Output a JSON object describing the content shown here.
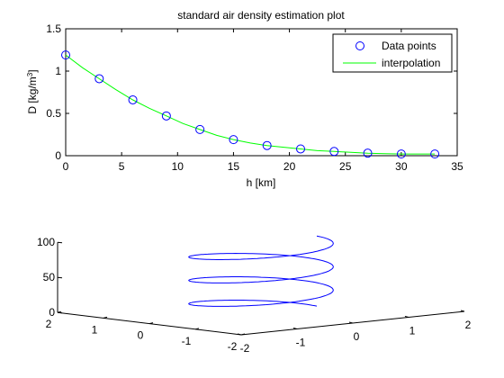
{
  "chart_data": [
    {
      "type": "line",
      "title": "standard air density estimation plot",
      "xlabel": "h [km]",
      "ylabel": "D [kg/m³]",
      "ylabel_parts": {
        "main": "D [kg/m",
        "sup": "3",
        "end": "]"
      },
      "xlim": [
        0,
        35
      ],
      "ylim": [
        0,
        1.5
      ],
      "xticks": [
        0,
        5,
        10,
        15,
        20,
        25,
        30,
        35
      ],
      "yticks": [
        0,
        0.5,
        1,
        1.5
      ],
      "xtick_labels": [
        "0",
        "5",
        "10",
        "15",
        "20",
        "25",
        "30",
        "35"
      ],
      "ytick_labels": [
        "0",
        "0.5",
        "1",
        "1.5"
      ],
      "grid": false,
      "legend_position": "top-right",
      "series": [
        {
          "name": "Data points",
          "style": "markers",
          "marker": "circle",
          "color": "#0000ff",
          "x": [
            0,
            3,
            6,
            9,
            12,
            15,
            18,
            21,
            24,
            27,
            30,
            33
          ],
          "y": [
            1.19,
            0.91,
            0.66,
            0.47,
            0.31,
            0.19,
            0.12,
            0.08,
            0.05,
            0.03,
            0.02,
            0.02
          ]
        },
        {
          "name": "interpolation",
          "style": "line",
          "color": "#00ff00",
          "x": [
            0,
            1.5,
            3,
            4.5,
            6,
            7.5,
            9,
            10.5,
            12,
            13.5,
            15,
            16.5,
            18,
            19.5,
            21,
            22.5,
            24,
            25.5,
            27,
            28.5,
            30,
            31.5,
            33
          ],
          "y": [
            1.19,
            1.04,
            0.91,
            0.78,
            0.66,
            0.56,
            0.47,
            0.38,
            0.31,
            0.24,
            0.19,
            0.15,
            0.12,
            0.1,
            0.08,
            0.06,
            0.05,
            0.04,
            0.03,
            0.025,
            0.02,
            0.02,
            0.02
          ]
        }
      ]
    },
    {
      "type": "line3d",
      "title": "",
      "xlim": [
        -2,
        2
      ],
      "ylim": [
        -2,
        2
      ],
      "zlim": [
        0,
        100
      ],
      "xtick_labels": [
        "-2",
        "-1",
        "0",
        "1",
        "2"
      ],
      "ytick_labels": [
        "-2",
        "-1",
        "0",
        "1",
        "2"
      ],
      "ztick_labels": [
        "0",
        "50",
        "100"
      ],
      "zticks": [
        0,
        50,
        100
      ],
      "grid": false,
      "series": [
        {
          "name": "",
          "color": "#0000ff",
          "description_equation": "helix",
          "t_range": [
            0,
            18.85
          ],
          "radius": 1,
          "z_scale": 5.3
        }
      ]
    }
  ]
}
